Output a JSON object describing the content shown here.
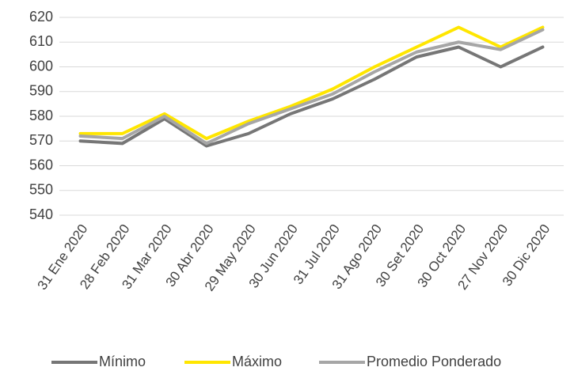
{
  "chart_data": {
    "type": "line",
    "categories": [
      "31 Ene 2020",
      "28 Feb 2020",
      "31 Mar 2020",
      "30 Abr 2020",
      "29 May 2020",
      "30 Jun 2020",
      "31 Jul 2020",
      "31 Ago 2020",
      "30 Set 2020",
      "30 Oct 2020",
      "27 Nov 2020",
      "30 Dic 2020"
    ],
    "series": [
      {
        "name": "Mínimo",
        "color": "#767676",
        "values": [
          570,
          569,
          579,
          568,
          573,
          581,
          587,
          595,
          604,
          608,
          600,
          608
        ]
      },
      {
        "name": "Máximo",
        "color": "#ffe600",
        "values": [
          573,
          573,
          581,
          571,
          578,
          584,
          591,
          600,
          608,
          616,
          608,
          616
        ]
      },
      {
        "name": "Promedio Ponderado",
        "color": "#a6a6a6",
        "values": [
          572,
          571,
          580,
          569,
          577,
          583,
          589,
          598,
          606,
          610,
          607,
          615
        ]
      }
    ],
    "ylim": [
      540,
      620
    ],
    "yticks": [
      540,
      550,
      560,
      570,
      580,
      590,
      600,
      610,
      620
    ],
    "grid": true,
    "legend": "bottom"
  }
}
